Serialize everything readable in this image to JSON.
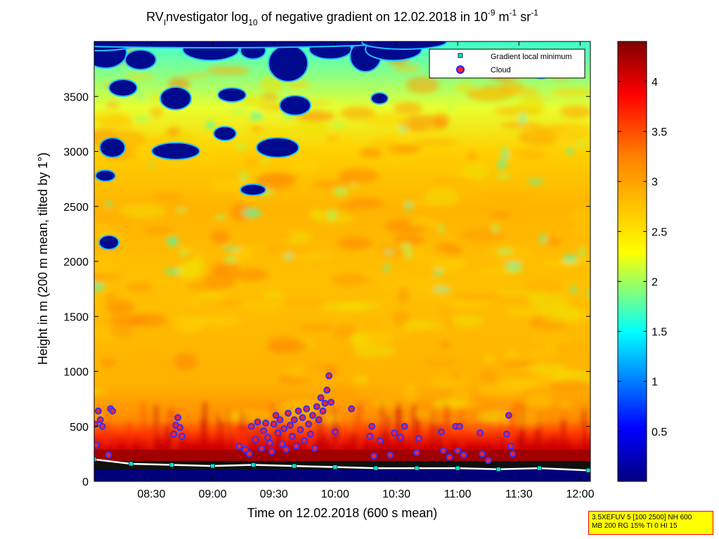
{
  "chart_data": {
    "type": "heatmap",
    "title": {
      "prefix": "RV",
      "prefix_sub": "I",
      "part1": "nvestigator log",
      "sub10": "10",
      "part2": " of negative gradient on 12.02.2018 in 10",
      "exp1": "-9",
      "part3": " m",
      "exp2": "-1",
      "part4": " sr",
      "exp3": "-1"
    },
    "xlabel": "Time on 12.02.2018 (600 s mean)",
    "ylabel": "Height in m (200 m mean, tilted by 1°)",
    "x_ticks": [
      "08:30",
      "09:00",
      "09:30",
      "10:00",
      "10:30",
      "11:00",
      "11:30",
      "12:00"
    ],
    "x_tick_minutes": [
      510,
      540,
      570,
      600,
      630,
      660,
      690,
      720
    ],
    "xlim_minutes": [
      482,
      725
    ],
    "y_ticks": [
      "0",
      "500",
      "1000",
      "1500",
      "2000",
      "2500",
      "3000",
      "3500"
    ],
    "y_tick_values": [
      0,
      500,
      1000,
      1500,
      2000,
      2500,
      3000,
      3500
    ],
    "ylim": [
      0,
      4000
    ],
    "colorbar": {
      "ticks": [
        "0.5",
        "1",
        "1.5",
        "2",
        "2.5",
        "3",
        "3.5",
        "4"
      ],
      "tick_values": [
        0.5,
        1,
        1.5,
        2,
        2.5,
        3,
        3.5,
        4
      ],
      "range": [
        0,
        4.4
      ],
      "colormap": "jet"
    },
    "legend": {
      "placement": "top-right",
      "entries": [
        {
          "label": "Gradient local minimum",
          "color": "#00e0e0",
          "marker": "square"
        },
        {
          "label": "Cloud",
          "color": "#ff2020",
          "marker": "circle"
        }
      ]
    },
    "cloud_points": [
      {
        "t": 482.5,
        "h": 520
      },
      {
        "t": 483,
        "h": 330
      },
      {
        "t": 484,
        "h": 640
      },
      {
        "t": 485,
        "h": 560
      },
      {
        "t": 486,
        "h": 500
      },
      {
        "t": 490,
        "h": 660
      },
      {
        "t": 491,
        "h": 640
      },
      {
        "t": 489,
        "h": 240
      },
      {
        "t": 521,
        "h": 430
      },
      {
        "t": 522,
        "h": 510
      },
      {
        "t": 523,
        "h": 580
      },
      {
        "t": 524,
        "h": 490
      },
      {
        "t": 525,
        "h": 410
      },
      {
        "t": 553,
        "h": 320
      },
      {
        "t": 556,
        "h": 290
      },
      {
        "t": 558,
        "h": 250
      },
      {
        "t": 559,
        "h": 500
      },
      {
        "t": 561,
        "h": 380
      },
      {
        "t": 562,
        "h": 540
      },
      {
        "t": 564,
        "h": 300
      },
      {
        "t": 565,
        "h": 460
      },
      {
        "t": 566,
        "h": 530
      },
      {
        "t": 567,
        "h": 400
      },
      {
        "t": 568,
        "h": 350
      },
      {
        "t": 569,
        "h": 270
      },
      {
        "t": 570,
        "h": 520
      },
      {
        "t": 571,
        "h": 600
      },
      {
        "t": 572,
        "h": 440
      },
      {
        "t": 573,
        "h": 560
      },
      {
        "t": 574,
        "h": 340
      },
      {
        "t": 575,
        "h": 480
      },
      {
        "t": 576,
        "h": 290
      },
      {
        "t": 577,
        "h": 620
      },
      {
        "t": 578,
        "h": 510
      },
      {
        "t": 579,
        "h": 410
      },
      {
        "t": 580,
        "h": 560
      },
      {
        "t": 581,
        "h": 320
      },
      {
        "t": 582,
        "h": 640
      },
      {
        "t": 583,
        "h": 470
      },
      {
        "t": 584,
        "h": 580
      },
      {
        "t": 585,
        "h": 370
      },
      {
        "t": 586,
        "h": 660
      },
      {
        "t": 587,
        "h": 520
      },
      {
        "t": 588,
        "h": 430
      },
      {
        "t": 589,
        "h": 600
      },
      {
        "t": 590,
        "h": 300
      },
      {
        "t": 591,
        "h": 680
      },
      {
        "t": 592,
        "h": 560
      },
      {
        "t": 593,
        "h": 760
      },
      {
        "t": 594,
        "h": 640
      },
      {
        "t": 595,
        "h": 710
      },
      {
        "t": 596,
        "h": 830
      },
      {
        "t": 597,
        "h": 960
      },
      {
        "t": 598,
        "h": 720
      },
      {
        "t": 600,
        "h": 450
      },
      {
        "t": 608,
        "h": 660
      },
      {
        "t": 617,
        "h": 410
      },
      {
        "t": 618,
        "h": 500
      },
      {
        "t": 619,
        "h": 230
      },
      {
        "t": 622,
        "h": 370
      },
      {
        "t": 627,
        "h": 240
      },
      {
        "t": 629,
        "h": 440
      },
      {
        "t": 632,
        "h": 400
      },
      {
        "t": 634,
        "h": 500
      },
      {
        "t": 640,
        "h": 260
      },
      {
        "t": 641,
        "h": 390
      },
      {
        "t": 652,
        "h": 450
      },
      {
        "t": 653,
        "h": 280
      },
      {
        "t": 656,
        "h": 220
      },
      {
        "t": 659,
        "h": 500
      },
      {
        "t": 661,
        "h": 500
      },
      {
        "t": 660,
        "h": 280
      },
      {
        "t": 663,
        "h": 240
      },
      {
        "t": 671,
        "h": 440
      },
      {
        "t": 672,
        "h": 250
      },
      {
        "t": 675,
        "h": 190
      },
      {
        "t": 684,
        "h": 430
      },
      {
        "t": 685,
        "h": 600
      },
      {
        "t": 686,
        "h": 320
      },
      {
        "t": 687,
        "h": 250
      }
    ],
    "gradient_min_points": [
      {
        "t": 482,
        "h": 200
      },
      {
        "t": 500,
        "h": 160
      },
      {
        "t": 520,
        "h": 150
      },
      {
        "t": 540,
        "h": 140
      },
      {
        "t": 560,
        "h": 150
      },
      {
        "t": 580,
        "h": 140
      },
      {
        "t": 600,
        "h": 130
      },
      {
        "t": 620,
        "h": 120
      },
      {
        "t": 640,
        "h": 120
      },
      {
        "t": 660,
        "h": 120
      },
      {
        "t": 680,
        "h": 110
      },
      {
        "t": 700,
        "h": 120
      },
      {
        "t": 724,
        "h": 100
      }
    ],
    "colors": {
      "plot_background": "#00008f",
      "low_blue": "#000a8f",
      "mid_yellow": "#ffc800",
      "high_red": "#800000",
      "grid_line": "#000000"
    }
  },
  "info_box": {
    "line1": "3.5XEFUV 5 [100 2500] NH 600",
    "line2": "MB 200 RG 15% TI 0 HI 15"
  }
}
